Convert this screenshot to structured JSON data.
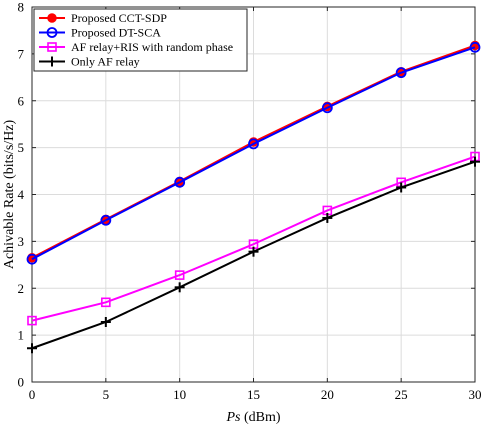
{
  "chart_data": {
    "type": "line",
    "xlabel_symbol": "Ps",
    "xlabel_unit": " (dBm)",
    "ylabel": "Achivable Rate (bits/s/Hz)",
    "x": [
      0,
      5,
      10,
      15,
      20,
      25,
      30
    ],
    "xlim": [
      0,
      30
    ],
    "ylim": [
      0,
      8
    ],
    "xticks": [
      0,
      5,
      10,
      15,
      20,
      25,
      30
    ],
    "yticks": [
      0,
      1,
      2,
      3,
      4,
      5,
      6,
      7,
      8
    ],
    "grid": true,
    "legend_position": "top-left",
    "series": [
      {
        "name": "Proposed CCT-SDP",
        "values": [
          2.65,
          3.47,
          4.28,
          5.12,
          5.88,
          6.62,
          7.18
        ],
        "color": "#ff0000",
        "marker": "filled-circle"
      },
      {
        "name": "Proposed DT-SCA",
        "values": [
          2.62,
          3.45,
          4.26,
          5.08,
          5.85,
          6.6,
          7.14
        ],
        "color": "#0000ff",
        "marker": "open-circle"
      },
      {
        "name": "AF relay+RIS with random phase",
        "values": [
          1.31,
          1.7,
          2.28,
          2.94,
          3.66,
          4.26,
          4.81
        ],
        "color": "#ff00ff",
        "marker": "open-square"
      },
      {
        "name": "Only AF relay",
        "values": [
          0.72,
          1.28,
          2.02,
          2.78,
          3.5,
          4.15,
          4.7
        ],
        "color": "#000000",
        "marker": "plus"
      }
    ]
  }
}
